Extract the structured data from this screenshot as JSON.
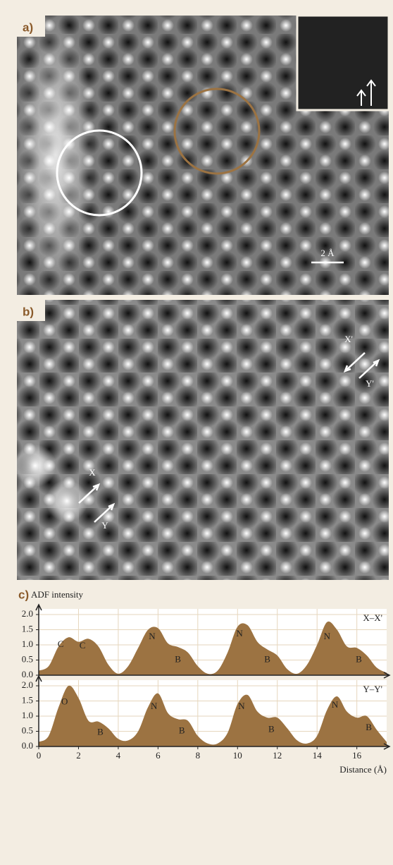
{
  "panels": {
    "a": {
      "label": "a)",
      "scale_bar": "2 Å"
    },
    "b": {
      "label": "b)",
      "markers": [
        "X",
        "Y",
        "X'",
        "Y'"
      ]
    },
    "c": {
      "label": "c)"
    }
  },
  "chart_data": [
    {
      "type": "area",
      "ylabel": "ADF intensity",
      "series": [
        {
          "name": "X–X'",
          "color": "#9c7342",
          "x": [
            0,
            0.5,
            1,
            1.5,
            2,
            2.5,
            3,
            3.5,
            4,
            4.5,
            5,
            5.5,
            6,
            6.5,
            7,
            7.5,
            8,
            8.5,
            9,
            9.5,
            10,
            10.5,
            11,
            11.5,
            12,
            12.5,
            13,
            13.5,
            14,
            14.5,
            15,
            15.5,
            16,
            16.5,
            17,
            17.5
          ],
          "values": [
            0.15,
            0.3,
            0.95,
            1.25,
            1.1,
            1.2,
            0.95,
            0.35,
            0.05,
            0.3,
            0.9,
            1.5,
            1.55,
            1.05,
            0.93,
            0.75,
            0.3,
            0.05,
            0.15,
            0.75,
            1.6,
            1.65,
            1.1,
            0.85,
            0.65,
            0.2,
            0.05,
            0.35,
            1.0,
            1.75,
            1.5,
            0.95,
            0.9,
            0.65,
            0.25,
            0.08
          ]
        }
      ],
      "annotations": [
        {
          "text": "C",
          "x": 1.1,
          "y": 1.0
        },
        {
          "text": "C",
          "x": 2.2,
          "y": 0.95
        },
        {
          "text": "N",
          "x": 5.7,
          "y": 1.25
        },
        {
          "text": "B",
          "x": 7.0,
          "y": 0.5
        },
        {
          "text": "N",
          "x": 10.1,
          "y": 1.35
        },
        {
          "text": "B",
          "x": 11.5,
          "y": 0.5
        },
        {
          "text": "N",
          "x": 14.5,
          "y": 1.25
        },
        {
          "text": "B",
          "x": 16.1,
          "y": 0.5
        }
      ],
      "xlim": [
        0,
        17.5
      ],
      "ylim": [
        0,
        2
      ],
      "yticks": [
        {
          "value": 0,
          "label": "0.0"
        },
        0.5,
        {
          "value": 1,
          "label": "1.0"
        },
        1.5,
        {
          "value": 2,
          "label": "2.0"
        }
      ]
    },
    {
      "type": "area",
      "xlabel": "Distance (Å)",
      "series": [
        {
          "name": "Y–Y'",
          "color": "#9c7342",
          "x": [
            0,
            0.5,
            1,
            1.5,
            2,
            2.5,
            3,
            3.5,
            4,
            4.5,
            5,
            5.5,
            6,
            6.5,
            7,
            7.5,
            8,
            8.5,
            9,
            9.5,
            10,
            10.5,
            11,
            11.5,
            12,
            12.5,
            13,
            13.5,
            14,
            14.5,
            15,
            15.5,
            16,
            16.5,
            17,
            17.5
          ],
          "values": [
            0.15,
            0.35,
            1.3,
            2.0,
            1.6,
            0.85,
            0.82,
            0.6,
            0.25,
            0.2,
            0.5,
            1.3,
            1.75,
            1.1,
            0.9,
            0.85,
            0.35,
            0.1,
            0.1,
            0.45,
            1.4,
            1.7,
            1.15,
            0.95,
            0.95,
            0.6,
            0.2,
            0.1,
            0.35,
            1.2,
            1.65,
            1.15,
            0.95,
            1.0,
            0.55,
            0.15
          ]
        }
      ],
      "annotations": [
        {
          "text": "O",
          "x": 1.3,
          "y": 1.45
        },
        {
          "text": "B",
          "x": 3.1,
          "y": 0.45
        },
        {
          "text": "N",
          "x": 5.8,
          "y": 1.3
        },
        {
          "text": "B",
          "x": 7.2,
          "y": 0.5
        },
        {
          "text": "N",
          "x": 10.2,
          "y": 1.3
        },
        {
          "text": "B",
          "x": 11.7,
          "y": 0.55
        },
        {
          "text": "N",
          "x": 14.9,
          "y": 1.35
        },
        {
          "text": "B",
          "x": 16.6,
          "y": 0.6
        }
      ],
      "xlim": [
        0,
        17.5
      ],
      "xticks": [
        0,
        2,
        4,
        6,
        8,
        10,
        12,
        14,
        16
      ],
      "ylim": [
        0,
        2
      ],
      "yticks": [
        {
          "value": 0,
          "label": "0.0"
        },
        0.5,
        {
          "value": 1,
          "label": "1.0"
        },
        1.5,
        {
          "value": 2,
          "label": "2.0"
        }
      ]
    }
  ]
}
